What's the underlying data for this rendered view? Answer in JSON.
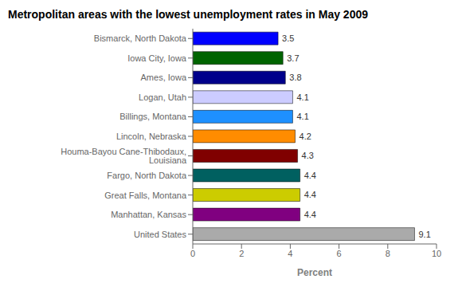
{
  "chart_data": {
    "type": "bar",
    "title": "Metropolitan areas with the lowest unemployment rates in May 2009",
    "orientation": "horizontal",
    "categories": [
      "United States",
      "Manhattan, Kansas",
      "Great Falls, Montana",
      "Fargo, North Dakota",
      "Houma-Bayou Cane-Thibodaux, Louisiana",
      "Lincoln, Nebraska",
      "Billings, Montana",
      "Logan, Utah",
      "Ames, Iowa",
      "Iowa City, Iowa",
      "Bismarck, North Dakota"
    ],
    "values": [
      9.1,
      4.4,
      4.4,
      4.4,
      4.3,
      4.2,
      4.1,
      4.1,
      3.8,
      3.7,
      3.5
    ],
    "colors": [
      "#aaaaaa",
      "#800080",
      "#cccc00",
      "#006060",
      "#800000",
      "#ff8c00",
      "#1e90ff",
      "#ccccff",
      "#00008b",
      "#006400",
      "#0000ff"
    ],
    "xlabel": "Percent",
    "xlim": [
      0,
      10
    ],
    "xticks": [
      0,
      2,
      4,
      6,
      8,
      10
    ],
    "data_labels": true
  }
}
